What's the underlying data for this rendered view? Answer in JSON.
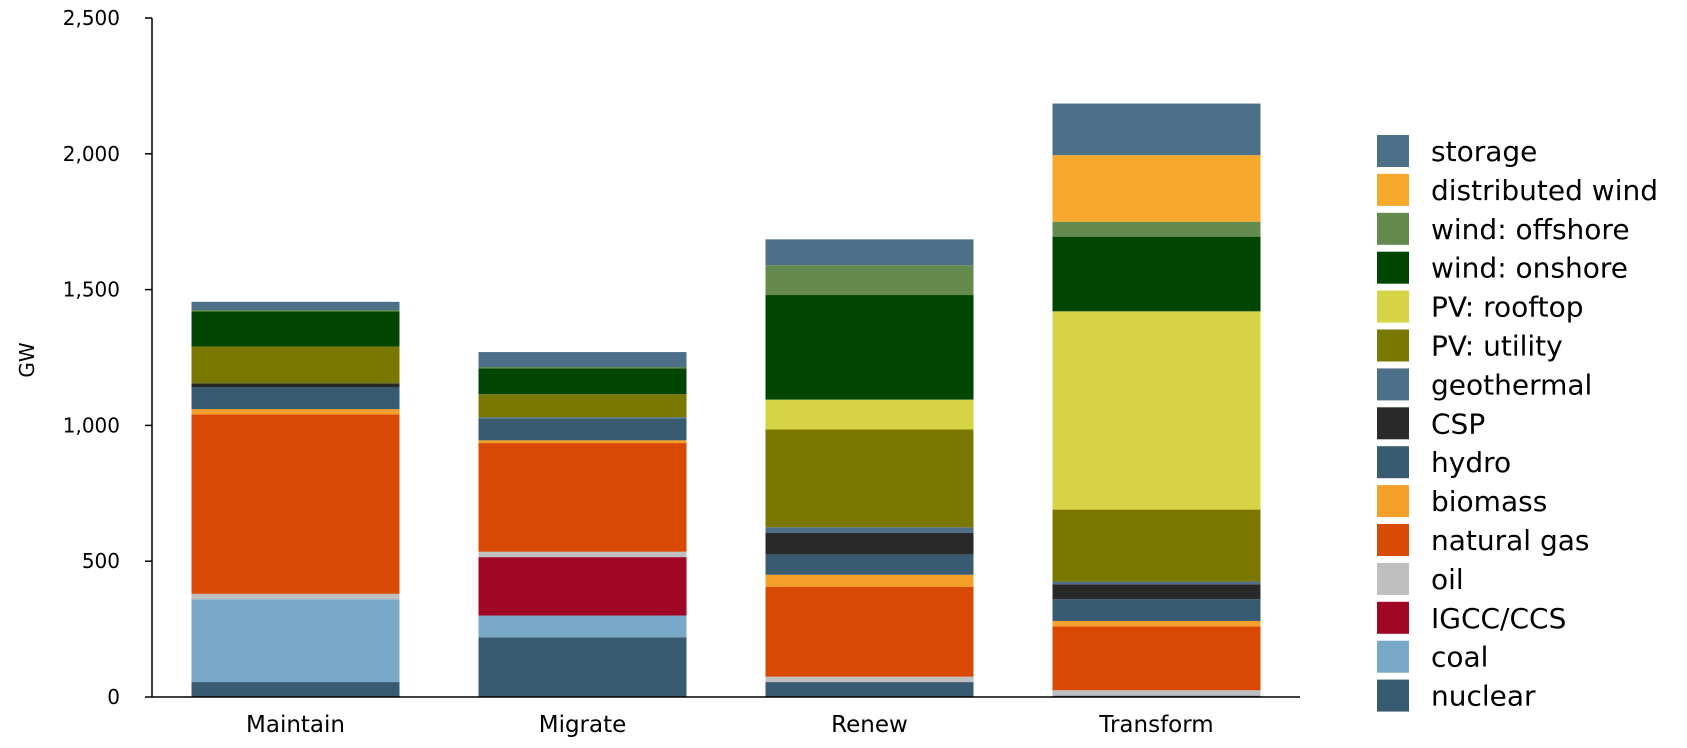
{
  "chart_data": {
    "type": "bar",
    "stacked": true,
    "title": "",
    "xlabel": "",
    "ylabel": "GW",
    "ylim": [
      0,
      2500
    ],
    "yticks": [
      0,
      500,
      1000,
      1500,
      2000,
      2500
    ],
    "ytick_labels": [
      "0",
      "500",
      "1,000",
      "1,500",
      "2,000",
      "2,500"
    ],
    "grid": false,
    "legend_position": "right",
    "categories": [
      "Maintain",
      "Migrate",
      "Renew",
      "Transform"
    ],
    "series": [
      {
        "name": "nuclear",
        "color": "#395b71",
        "values": [
          55,
          220,
          55,
          5
        ]
      },
      {
        "name": "coal",
        "color": "#79a9c8",
        "values": [
          305,
          80,
          0,
          0
        ]
      },
      {
        "name": "IGCC/CCS",
        "color": "#a20625",
        "values": [
          0,
          215,
          0,
          0
        ]
      },
      {
        "name": "oil",
        "color": "#bfbfbf",
        "values": [
          20,
          20,
          20,
          20
        ]
      },
      {
        "name": "natural gas",
        "color": "#d84a03",
        "values": [
          660,
          400,
          330,
          235
        ]
      },
      {
        "name": "biomass",
        "color": "#f6a02c",
        "values": [
          20,
          10,
          45,
          20
        ]
      },
      {
        "name": "hydro",
        "color": "#395b71",
        "values": [
          80,
          80,
          75,
          80
        ]
      },
      {
        "name": "CSP",
        "color": "#292929",
        "values": [
          15,
          0,
          80,
          55
        ]
      },
      {
        "name": "geothermal",
        "color": "#4d6f87",
        "values": [
          0,
          5,
          20,
          10
        ]
      },
      {
        "name": "PV: utility",
        "color": "#7a7800",
        "values": [
          135,
          85,
          360,
          265
        ]
      },
      {
        "name": "PV: rooftop",
        "color": "#d6d344",
        "values": [
          0,
          0,
          110,
          730
        ]
      },
      {
        "name": "wind: onshore",
        "color": "#004600",
        "values": [
          130,
          95,
          385,
          275
        ]
      },
      {
        "name": "wind: offshore",
        "color": "#648a4e",
        "values": [
          5,
          5,
          110,
          55
        ]
      },
      {
        "name": "distributed wind",
        "color": "#f6a82c",
        "values": [
          0,
          0,
          0,
          245
        ]
      },
      {
        "name": "storage",
        "color": "#4d6f87",
        "values": [
          30,
          55,
          95,
          190
        ]
      }
    ],
    "legend_order": [
      "storage",
      "distributed wind",
      "wind: offshore",
      "wind: onshore",
      "PV: rooftop",
      "PV: utility",
      "geothermal",
      "CSP",
      "hydro",
      "biomass",
      "natural gas",
      "oil",
      "IGCC/CCS",
      "coal",
      "nuclear"
    ]
  }
}
